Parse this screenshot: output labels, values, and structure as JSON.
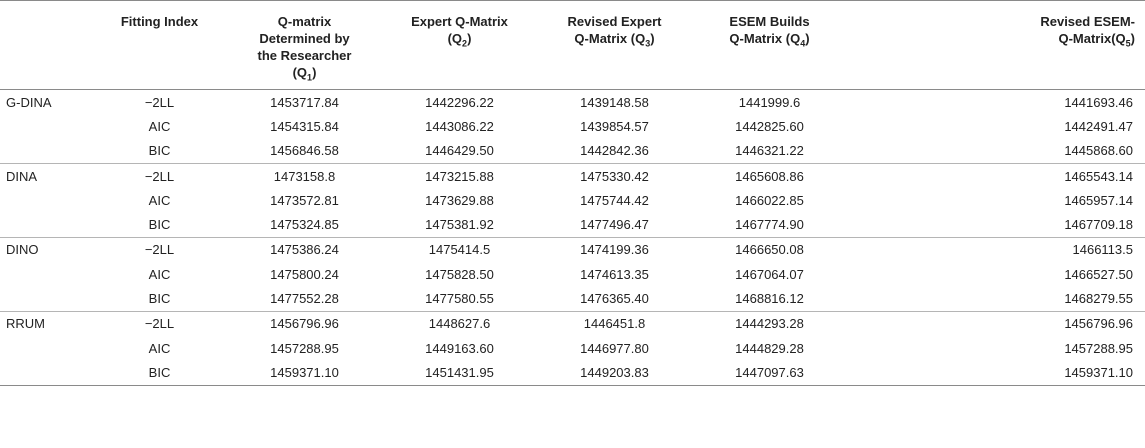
{
  "headers": {
    "model": "",
    "fitting_index": "Fitting Index",
    "q1": {
      "line1": "Q-matrix",
      "line2": "Determined by",
      "line3": "the Researcher",
      "line4_pre": "(Q",
      "sub": "1",
      "line4_post": ")"
    },
    "q2": {
      "line1": "Expert Q-Matrix",
      "line2_pre": "(Q",
      "sub": "2",
      "line2_post": ")"
    },
    "q3": {
      "line1": "Revised Expert",
      "line2_pre": "Q-Matrix (Q",
      "sub": "3",
      "line2_post": ")"
    },
    "q4": {
      "line1": "ESEM Builds",
      "line2_pre": "Q-Matrix (Q",
      "sub": "4",
      "line2_post": ")"
    },
    "q5": {
      "line1": "Revised ESEM-",
      "line2_pre": "Q-Matrix(Q",
      "sub": "5",
      "line2_post": ")"
    }
  },
  "rows": [
    {
      "model": "G-DINA",
      "index": "−2LL",
      "q1": "1453717.84",
      "q2": "1442296.22",
      "q3": "1439148.58",
      "q4": "1441999.6",
      "q5": "1441693.46"
    },
    {
      "model": "",
      "index": "AIC",
      "q1": "1454315.84",
      "q2": "1443086.22",
      "q3": "1439854.57",
      "q4": "1442825.60",
      "q5": "1442491.47"
    },
    {
      "model": "",
      "index": "BIC",
      "q1": "1456846.58",
      "q2": "1446429.50",
      "q3": "1442842.36",
      "q4": "1446321.22",
      "q5": "1445868.60"
    },
    {
      "model": "DINA",
      "index": "−2LL",
      "q1": "1473158.8",
      "q2": "1473215.88",
      "q3": "1475330.42",
      "q4": "1465608.86",
      "q5": "1465543.14"
    },
    {
      "model": "",
      "index": "AIC",
      "q1": "1473572.81",
      "q2": "1473629.88",
      "q3": "1475744.42",
      "q4": "1466022.85",
      "q5": "1465957.14"
    },
    {
      "model": "",
      "index": "BIC",
      "q1": "1475324.85",
      "q2": "1475381.92",
      "q3": "1477496.47",
      "q4": "1467774.90",
      "q5": "1467709.18"
    },
    {
      "model": "DINO",
      "index": "−2LL",
      "q1": "1475386.24",
      "q2": "1475414.5",
      "q3": "1474199.36",
      "q4": "1466650.08",
      "q5": "1466113.5"
    },
    {
      "model": "",
      "index": "AIC",
      "q1": "1475800.24",
      "q2": "1475828.50",
      "q3": "1474613.35",
      "q4": "1467064.07",
      "q5": "1466527.50"
    },
    {
      "model": "",
      "index": "BIC",
      "q1": "1477552.28",
      "q2": "1477580.55",
      "q3": "1476365.40",
      "q4": "1468816.12",
      "q5": "1468279.55"
    },
    {
      "model": "RRUM",
      "index": "−2LL",
      "q1": "1456796.96",
      "q2": "1448627.6",
      "q3": "1446451.8",
      "q4": "1444293.28",
      "q5": "1456796.96"
    },
    {
      "model": "",
      "index": "AIC",
      "q1": "1457288.95",
      "q2": "1449163.60",
      "q3": "1446977.80",
      "q4": "1444829.28",
      "q5": "1457288.95"
    },
    {
      "model": "",
      "index": "BIC",
      "q1": "1459371.10",
      "q2": "1451431.95",
      "q3": "1449203.83",
      "q4": "1447097.63",
      "q5": "1459371.10"
    }
  ]
}
